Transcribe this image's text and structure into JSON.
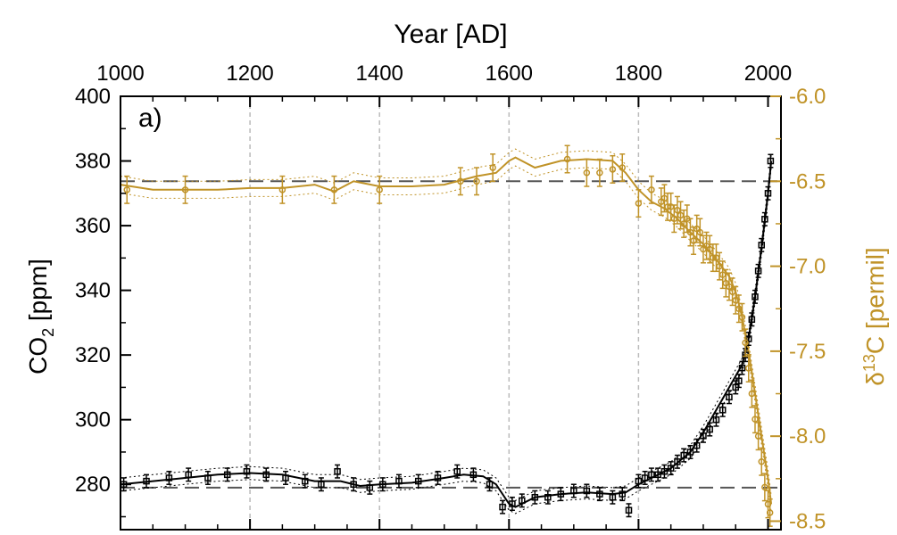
{
  "colors": {
    "co2": "#000000",
    "d13c": "#c09328",
    "grid": "#bbbbbb",
    "ref": "#555555"
  },
  "chart_data": {
    "type": "line",
    "panel_label": "a)",
    "x_axis": {
      "label": "Year [AD]",
      "range": [
        1000,
        2020
      ],
      "ticks": [
        1000,
        1200,
        1400,
        1600,
        1800,
        2000
      ],
      "position": "top"
    },
    "y_left": {
      "label_main": "CO",
      "label_sub": "2",
      "label_units": "[ppm]",
      "range": [
        266,
        400
      ],
      "ticks": [
        280,
        300,
        320,
        340,
        360,
        380,
        400
      ]
    },
    "y_right": {
      "label_prefix": "δ",
      "label_sup": "13",
      "label_main": "C",
      "label_units": "[permil]",
      "range": [
        -8.55,
        -6.0
      ],
      "ticks": [
        -6.0,
        -6.5,
        -7.0,
        -7.5,
        -8.0,
        -8.5
      ],
      "tick_labels": [
        "-6.0",
        "-6.5",
        "-7.0",
        "-7.5",
        "-8.0",
        "-8.5"
      ]
    },
    "reference_lines": {
      "co2": 279,
      "d13c": -6.5
    },
    "vertical_gridlines": [
      1200,
      1400,
      1600,
      1800
    ],
    "series": [
      {
        "name": "CO2",
        "axis": "left",
        "spline_x": [
          1000,
          1050,
          1100,
          1150,
          1200,
          1250,
          1300,
          1340,
          1370,
          1400,
          1450,
          1500,
          1530,
          1560,
          1580,
          1600,
          1610,
          1640,
          1680,
          1720,
          1760,
          1780,
          1800,
          1820,
          1850,
          1880,
          1900,
          1920,
          1940,
          1960,
          1970,
          1980,
          1990,
          2000,
          2005
        ],
        "spline_y": [
          280,
          281,
          282,
          283,
          283.5,
          283,
          281,
          281,
          279.5,
          280,
          280.5,
          282,
          283,
          282.5,
          280,
          274,
          273,
          276,
          277,
          277.5,
          277,
          277.5,
          280,
          282,
          285,
          290,
          296,
          303,
          310,
          317,
          325,
          338,
          353,
          370,
          380
        ],
        "band_upper_offset": 2,
        "band_lower_offset": 2,
        "points_x": [
          1005,
          1040,
          1075,
          1105,
          1135,
          1165,
          1195,
          1225,
          1255,
          1285,
          1310,
          1335,
          1360,
          1385,
          1405,
          1430,
          1460,
          1490,
          1520,
          1545,
          1570,
          1590,
          1605,
          1620,
          1640,
          1660,
          1680,
          1700,
          1720,
          1740,
          1760,
          1775,
          1785,
          1800,
          1810,
          1820,
          1830,
          1840,
          1850,
          1860,
          1870,
          1880,
          1890,
          1900,
          1910,
          1920,
          1930,
          1940,
          1950,
          1955,
          1960,
          1965,
          1970,
          1975,
          1980,
          1985,
          1990,
          1995,
          2000,
          2004
        ],
        "points_y": [
          280,
          281,
          282,
          283,
          282,
          283,
          284,
          283,
          282,
          281,
          280,
          284,
          280,
          279,
          280,
          281,
          281,
          282,
          284,
          283,
          280,
          273,
          274,
          275,
          276,
          276,
          277,
          278,
          278,
          277,
          276,
          277,
          272,
          281,
          282,
          283,
          283,
          284,
          285,
          287,
          289,
          290,
          292,
          295,
          297,
          300,
          303,
          307,
          310,
          312,
          316,
          320,
          325,
          331,
          338,
          346,
          354,
          362,
          370,
          380
        ],
        "error_ppm": 2
      },
      {
        "name": "δ13C",
        "axis": "right",
        "spline_x": [
          1000,
          1050,
          1100,
          1150,
          1200,
          1250,
          1300,
          1330,
          1360,
          1400,
          1450,
          1500,
          1550,
          1580,
          1600,
          1610,
          1640,
          1680,
          1720,
          1760,
          1780,
          1800,
          1820,
          1840,
          1860,
          1880,
          1900,
          1920,
          1940,
          1950,
          1960,
          1970,
          1980,
          1990,
          2000,
          2005
        ],
        "spline_y": [
          -6.52,
          -6.55,
          -6.55,
          -6.55,
          -6.54,
          -6.54,
          -6.52,
          -6.56,
          -6.5,
          -6.53,
          -6.53,
          -6.52,
          -6.47,
          -6.45,
          -6.38,
          -6.36,
          -6.42,
          -6.38,
          -6.37,
          -6.38,
          -6.45,
          -6.55,
          -6.62,
          -6.66,
          -6.72,
          -6.8,
          -6.87,
          -6.96,
          -7.06,
          -7.15,
          -7.3,
          -7.5,
          -7.75,
          -8.0,
          -8.25,
          -8.4
        ],
        "band_upper_offset": 0.05,
        "band_lower_offset": 0.05,
        "points_x": [
          1010,
          1100,
          1250,
          1330,
          1400,
          1525,
          1550,
          1575,
          1690,
          1720,
          1740,
          1760,
          1775,
          1800,
          1820,
          1835,
          1840,
          1845,
          1850,
          1855,
          1860,
          1865,
          1870,
          1875,
          1880,
          1885,
          1890,
          1895,
          1900,
          1905,
          1910,
          1915,
          1920,
          1925,
          1930,
          1935,
          1940,
          1945,
          1950,
          1955,
          1960,
          1965,
          1970,
          1975,
          1980,
          1985,
          1990,
          1995,
          2000,
          2003
        ],
        "points_y": [
          -6.55,
          -6.55,
          -6.55,
          -6.55,
          -6.55,
          -6.5,
          -6.5,
          -6.42,
          -6.37,
          -6.45,
          -6.45,
          -6.43,
          -6.42,
          -6.63,
          -6.55,
          -6.62,
          -6.6,
          -6.65,
          -6.65,
          -6.72,
          -6.67,
          -6.7,
          -6.75,
          -6.72,
          -6.8,
          -6.85,
          -6.78,
          -6.8,
          -6.9,
          -6.88,
          -6.9,
          -6.95,
          -6.95,
          -7.0,
          -7.05,
          -7.1,
          -7.12,
          -7.15,
          -7.2,
          -7.25,
          -7.3,
          -7.45,
          -7.6,
          -7.75,
          -7.9,
          -8.0,
          -8.15,
          -8.3,
          -8.4,
          -8.45
        ],
        "error_permil": 0.08
      }
    ]
  }
}
